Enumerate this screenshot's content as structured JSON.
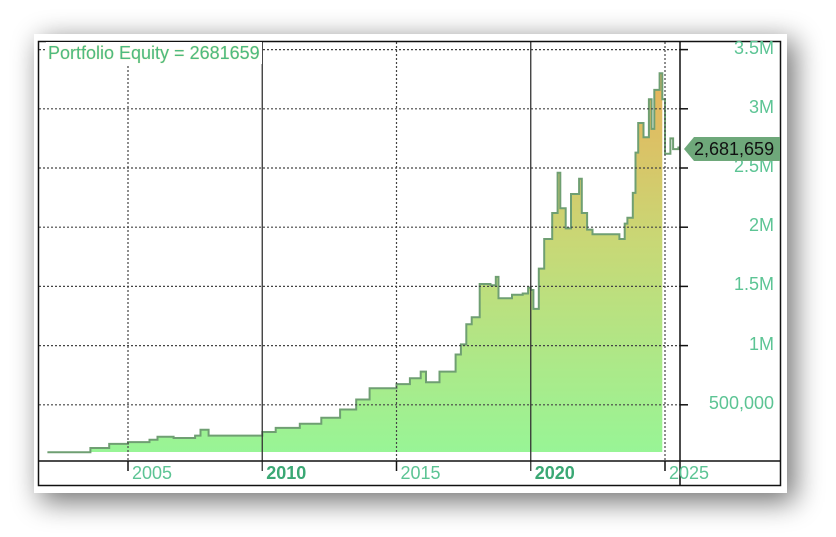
{
  "chart_data": {
    "type": "area",
    "title": "Portfolio Equity = 2681659",
    "series_name": "Portfolio Equity",
    "last_value": 2681659,
    "last_value_label": "2,681,659",
    "xlabel": "",
    "ylabel": "",
    "x_ticks": [
      "2005",
      "2010",
      "2015",
      "2020",
      "2025"
    ],
    "x_major_ticks": [
      "2010",
      "2020"
    ],
    "y_ticks": [
      "500,000",
      "1M",
      "1.5M",
      "2M",
      "2.5M",
      "3M",
      "3.5M"
    ],
    "y_tick_values": [
      500000,
      1000000,
      1500000,
      2000000,
      2500000,
      3000000,
      3500000
    ],
    "ylim": [
      0,
      3500000
    ],
    "xlim": [
      2002.0,
      2025.6
    ],
    "grid": true,
    "legend": "none",
    "fill_gradient": [
      "#9cf59a",
      "#e8b25a"
    ],
    "line_color": "#6f9f72",
    "label_color": "#5cc494",
    "x": [
      2002.0,
      2003.3,
      2003.6,
      2004.3,
      2005.0,
      2005.8,
      2006.1,
      2006.7,
      2007.5,
      2007.7,
      2008.0,
      2009.5,
      2010.0,
      2010.5,
      2011.4,
      2012.2,
      2012.9,
      2013.5,
      2014.0,
      2014.4,
      2015.0,
      2015.5,
      2015.9,
      2016.1,
      2016.6,
      2017.2,
      2017.4,
      2017.6,
      2017.8,
      2018.1,
      2018.5,
      2018.7,
      2018.8,
      2019.3,
      2019.7,
      2019.9,
      2020.0,
      2020.1,
      2020.3,
      2020.5,
      2020.8,
      2021.0,
      2021.1,
      2021.3,
      2021.5,
      2021.8,
      2021.9,
      2022.1,
      2022.3,
      2023.1,
      2023.3,
      2023.5,
      2023.6,
      2023.8,
      2023.9,
      2024.0,
      2024.2,
      2024.4,
      2024.5,
      2024.6,
      2024.8,
      2024.9,
      2025.0,
      2025.2,
      2025.3,
      2025.5
    ],
    "values": [
      100000,
      100000,
      135000,
      170000,
      185000,
      205000,
      230000,
      220000,
      240000,
      290000,
      240000,
      240000,
      270000,
      305000,
      340000,
      390000,
      460000,
      545000,
      640000,
      640000,
      675000,
      725000,
      780000,
      690000,
      780000,
      925000,
      1010000,
      1180000,
      1240000,
      1520000,
      1510000,
      1580000,
      1400000,
      1430000,
      1440000,
      1490000,
      1470000,
      1310000,
      1650000,
      1900000,
      2120000,
      2460000,
      2160000,
      1990000,
      2280000,
      2410000,
      2120000,
      1980000,
      1940000,
      1940000,
      1900000,
      2030000,
      2080000,
      2290000,
      2630000,
      2880000,
      2760000,
      3080000,
      2830000,
      3160000,
      3300000,
      3080000,
      2620000,
      2750000,
      2660000,
      2681659
    ]
  }
}
